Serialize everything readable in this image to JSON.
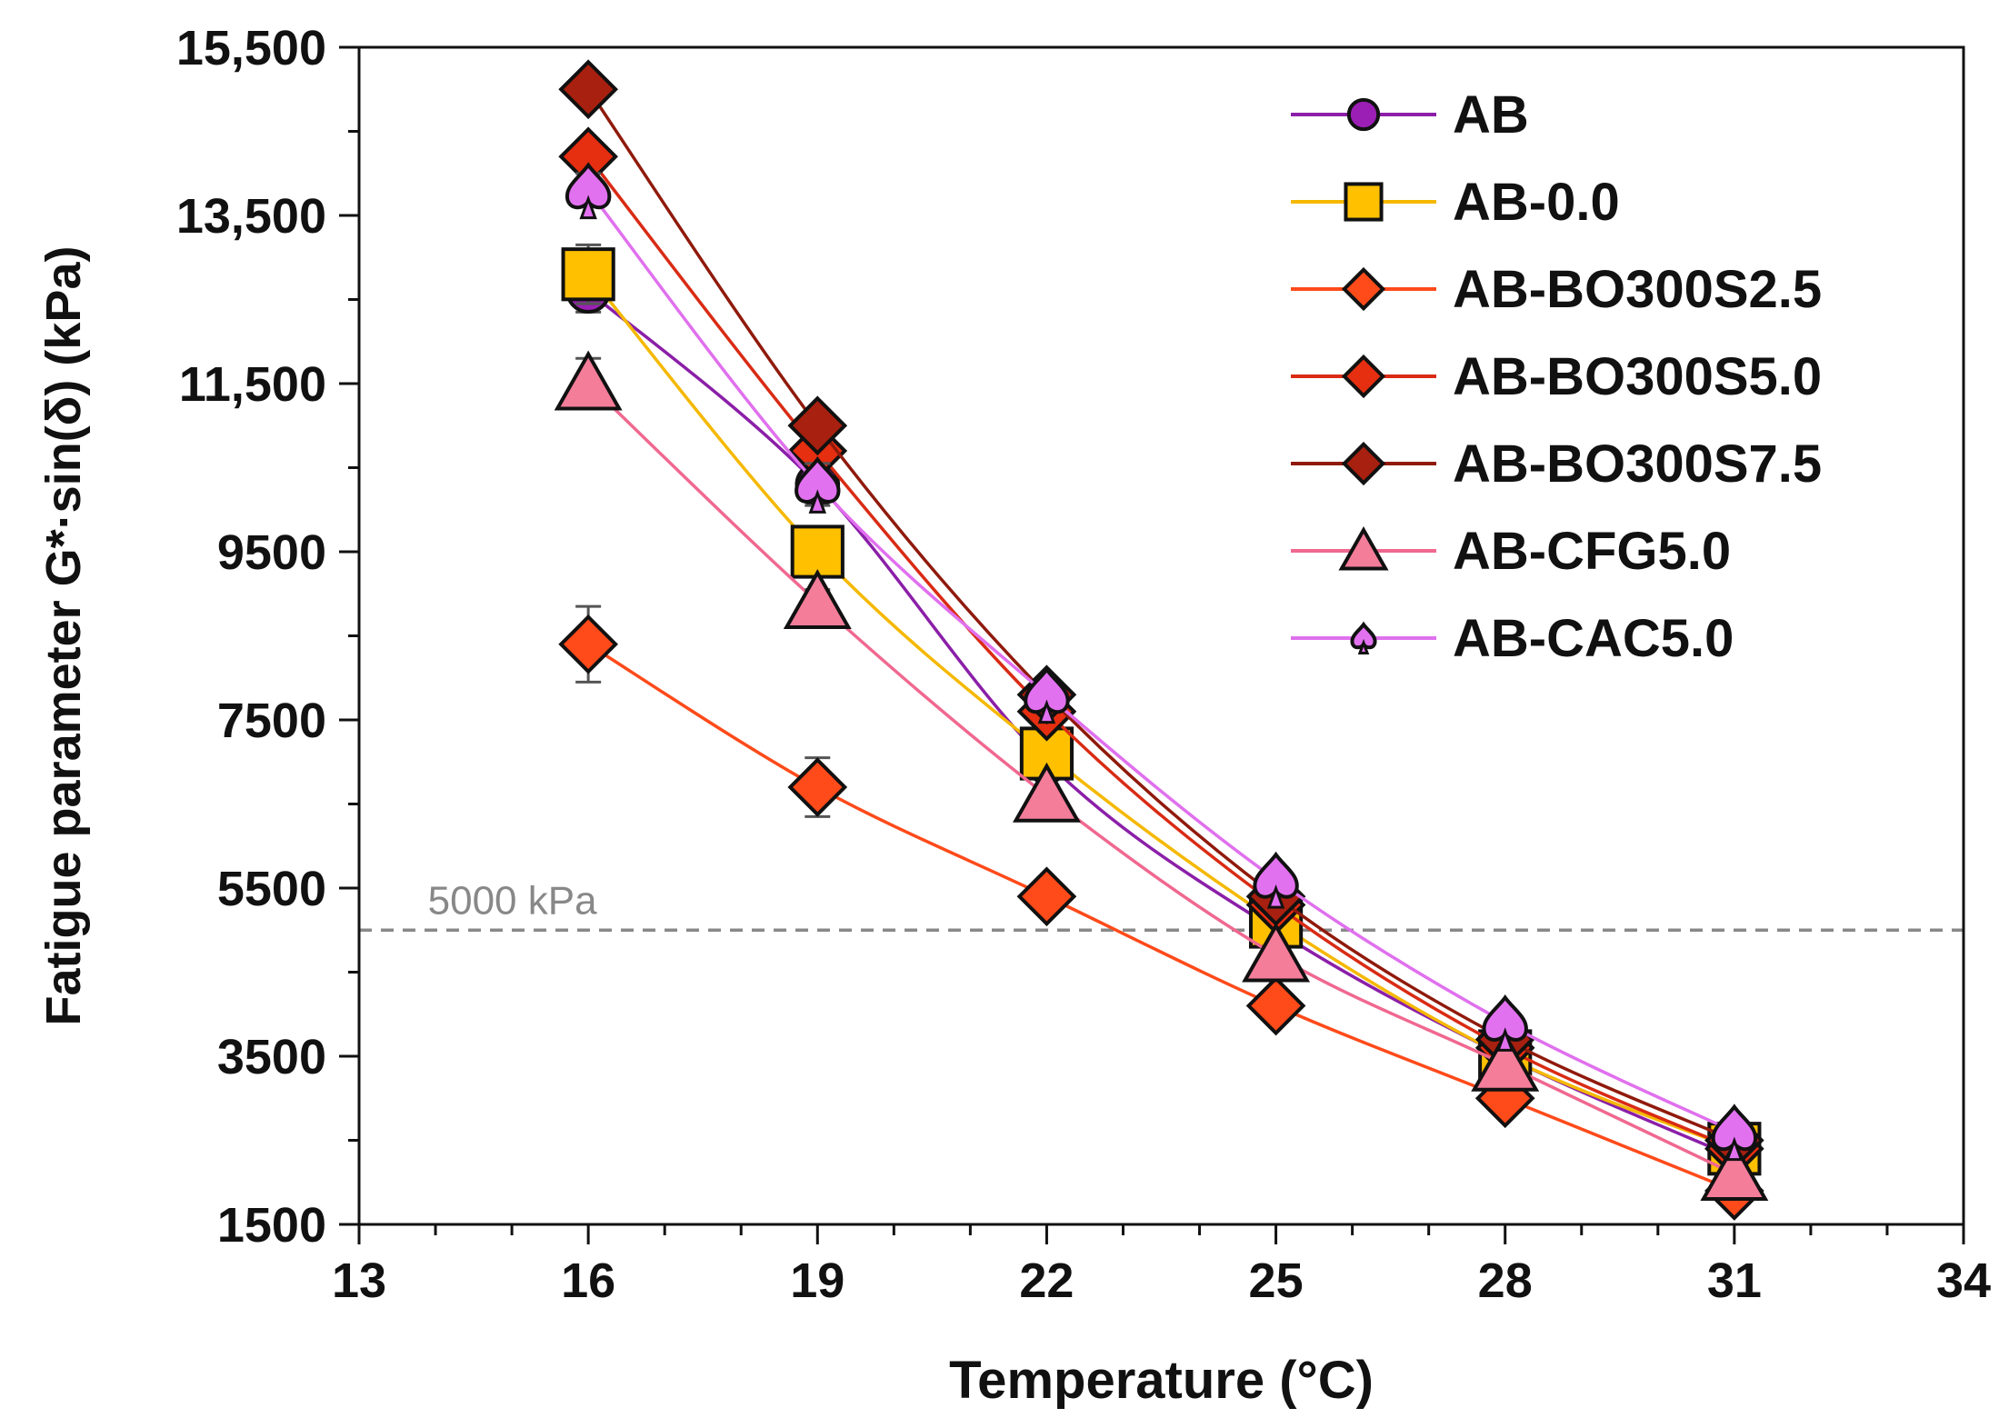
{
  "chart_data": {
    "type": "line",
    "title": "",
    "xlabel": "Temperature (°C)",
    "ylabel": "Fatigue parameter G*·sin(δ) (kPa)",
    "xlim": [
      13,
      34
    ],
    "ylim": [
      1500,
      15500
    ],
    "x_ticks": [
      13,
      16,
      19,
      22,
      25,
      28,
      31,
      34
    ],
    "y_ticks": [
      1500,
      3500,
      5500,
      7500,
      9500,
      11500,
      13500,
      15500
    ],
    "x_tick_labels": [
      "13",
      "16",
      "19",
      "22",
      "25",
      "28",
      "31",
      "34"
    ],
    "y_tick_labels": [
      "1500",
      "3500",
      "5500",
      "7500",
      "9500",
      "11,500",
      "13,500",
      "15,500"
    ],
    "x": [
      16,
      19,
      22,
      25,
      28,
      31
    ],
    "grid": false,
    "legend_position": "top-right",
    "reference_line": {
      "value": 5000,
      "label": "5000 kPa",
      "color": "#888888",
      "style": "dashed"
    },
    "series": [
      {
        "name": "AB",
        "marker": "circle",
        "color": "#9b1fb5",
        "line_color": "#8b1fa8",
        "values": [
          12600,
          10300,
          7000,
          5000,
          3500,
          2300
        ],
        "errors": [
          250,
          150,
          100,
          100,
          80,
          60
        ]
      },
      {
        "name": "AB-0.0",
        "marker": "square",
        "color": "#ffc000",
        "line_color": "#f5b800",
        "values": [
          12800,
          9500,
          7100,
          5100,
          3500,
          2400
        ],
        "errors": [
          350,
          150,
          120,
          100,
          80,
          60
        ]
      },
      {
        "name": "AB-BO300S2.5",
        "marker": "diamond",
        "color": "#ff4a1a",
        "line_color": "#ff4a1a",
        "values": [
          8400,
          6700,
          5400,
          4100,
          3000,
          1900
        ],
        "errors": [
          450,
          350,
          100,
          100,
          80,
          60
        ]
      },
      {
        "name": "AB-BO300S5.0",
        "marker": "diamond",
        "color": "#e62e10",
        "line_color": "#d92b14",
        "values": [
          14200,
          10700,
          7600,
          5300,
          3600,
          2400
        ],
        "errors": [
          150,
          150,
          120,
          100,
          80,
          60
        ]
      },
      {
        "name": "AB-BO300S7.5",
        "marker": "diamond",
        "color": "#a8200f",
        "line_color": "#8f1a0c",
        "values": [
          15000,
          11000,
          7800,
          5400,
          3700,
          2500
        ],
        "errors": [
          100,
          100,
          100,
          100,
          80,
          60
        ]
      },
      {
        "name": "AB-CFG5.0",
        "marker": "triangle",
        "color": "#f47d9a",
        "line_color": "#f06890",
        "values": [
          11500,
          8900,
          6600,
          4700,
          3400,
          2100
        ],
        "errors": [
          300,
          150,
          120,
          100,
          80,
          60
        ]
      },
      {
        "name": "AB-CAC5.0",
        "marker": "spade",
        "color": "#e271f0",
        "line_color": "#e070ee",
        "values": [
          13800,
          10300,
          7800,
          5600,
          3900,
          2600
        ],
        "errors": [
          200,
          250,
          120,
          100,
          80,
          60
        ]
      }
    ]
  }
}
